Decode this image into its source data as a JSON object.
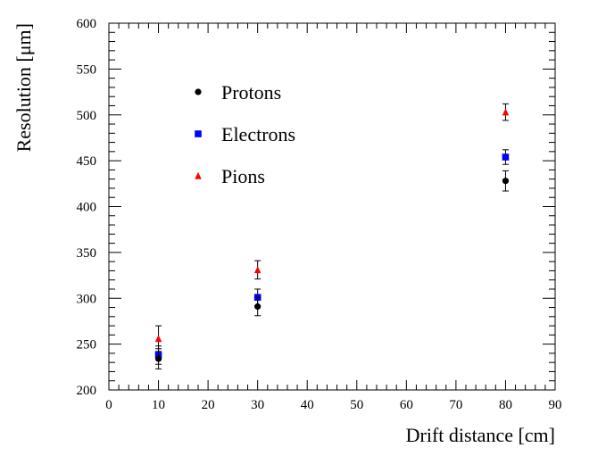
{
  "chart_data": {
    "type": "scatter",
    "title": "",
    "xlabel": "Drift distance [cm]",
    "ylabel": "Resolution [μm]",
    "xlim": [
      0,
      90
    ],
    "ylim": [
      200,
      600
    ],
    "x_ticks": [
      0,
      10,
      20,
      30,
      40,
      50,
      60,
      70,
      80,
      90
    ],
    "y_ticks": [
      200,
      250,
      300,
      350,
      400,
      450,
      500,
      550,
      600
    ],
    "grid": false,
    "legend_position": "top-left inside",
    "series": [
      {
        "name": "Protons",
        "marker": "circle",
        "color": "#000000",
        "x": [
          10,
          30,
          80
        ],
        "y": [
          234,
          291,
          428
        ],
        "yerr": [
          11,
          10,
          11
        ]
      },
      {
        "name": "Electrons",
        "marker": "square",
        "color": "#0000ff",
        "x": [
          10,
          30,
          80
        ],
        "y": [
          238,
          301,
          454
        ],
        "yerr": [
          10,
          9,
          8
        ]
      },
      {
        "name": "Pions",
        "marker": "triangle",
        "color": "#ff0000",
        "x": [
          10,
          30,
          80
        ],
        "y": [
          256,
          331,
          503
        ],
        "yerr": [
          14,
          10,
          9
        ]
      }
    ]
  }
}
